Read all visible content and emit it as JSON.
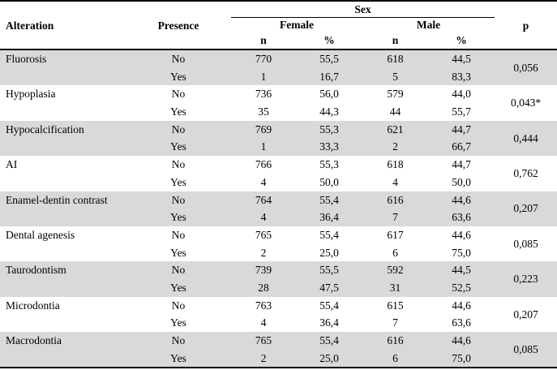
{
  "table": {
    "headers": {
      "alteration": "Alteration",
      "presence": "Presence",
      "sex": "Sex",
      "female": "Female",
      "male": "Male",
      "n": "n",
      "pct": "%",
      "p": "p"
    },
    "colors": {
      "stripe": "#d9d9d9",
      "border": "#000000"
    },
    "groups": [
      {
        "alteration": "Fluorosis",
        "p": "0,056",
        "shaded": true,
        "rows": [
          {
            "presence": "No",
            "f_n": "770",
            "f_pct": "55,5",
            "m_n": "618",
            "m_pct": "44,5"
          },
          {
            "presence": "Yes",
            "f_n": "1",
            "f_pct": "16,7",
            "m_n": "5",
            "m_pct": "83,3"
          }
        ]
      },
      {
        "alteration": "Hypoplasia",
        "p": "0,043*",
        "shaded": false,
        "rows": [
          {
            "presence": "No",
            "f_n": "736",
            "f_pct": "56,0",
            "m_n": "579",
            "m_pct": "44,0"
          },
          {
            "presence": "Yes",
            "f_n": "35",
            "f_pct": "44,3",
            "m_n": "44",
            "m_pct": "55,7"
          }
        ]
      },
      {
        "alteration": "Hypocalcification",
        "p": "0,444",
        "shaded": true,
        "rows": [
          {
            "presence": "No",
            "f_n": "769",
            "f_pct": "55,3",
            "m_n": "621",
            "m_pct": "44,7"
          },
          {
            "presence": "Yes",
            "f_n": "1",
            "f_pct": "33,3",
            "m_n": "2",
            "m_pct": "66,7"
          }
        ]
      },
      {
        "alteration": "AI",
        "p": "0,762",
        "shaded": false,
        "rows": [
          {
            "presence": "No",
            "f_n": "766",
            "f_pct": "55,3",
            "m_n": "618",
            "m_pct": "44,7"
          },
          {
            "presence": "Yes",
            "f_n": "4",
            "f_pct": "50,0",
            "m_n": "4",
            "m_pct": "50,0"
          }
        ]
      },
      {
        "alteration": "Enamel-dentin contrast",
        "p": "0,207",
        "shaded": true,
        "rows": [
          {
            "presence": "No",
            "f_n": "764",
            "f_pct": "55,4",
            "m_n": "616",
            "m_pct": "44,6"
          },
          {
            "presence": "Yes",
            "f_n": "4",
            "f_pct": "36,4",
            "m_n": "7",
            "m_pct": "63,6"
          }
        ]
      },
      {
        "alteration": "Dental agenesis",
        "p": "0,085",
        "shaded": false,
        "rows": [
          {
            "presence": "No",
            "f_n": "765",
            "f_pct": "55,4",
            "m_n": "617",
            "m_pct": "44,6"
          },
          {
            "presence": "Yes",
            "f_n": "2",
            "f_pct": "25,0",
            "m_n": "6",
            "m_pct": "75,0"
          }
        ]
      },
      {
        "alteration": "Taurodontism",
        "p": "0,223",
        "shaded": true,
        "rows": [
          {
            "presence": "No",
            "f_n": "739",
            "f_pct": "55,5",
            "m_n": "592",
            "m_pct": "44,5"
          },
          {
            "presence": "Yes",
            "f_n": "28",
            "f_pct": "47,5",
            "m_n": "31",
            "m_pct": "52,5"
          }
        ]
      },
      {
        "alteration": "Microdontia",
        "p": "0,207",
        "shaded": false,
        "rows": [
          {
            "presence": "No",
            "f_n": "763",
            "f_pct": "55,4",
            "m_n": "615",
            "m_pct": "44,6"
          },
          {
            "presence": "Yes",
            "f_n": "4",
            "f_pct": "36,4",
            "m_n": "7",
            "m_pct": "63,6"
          }
        ]
      },
      {
        "alteration": "Macrodontia",
        "p": "0,085",
        "shaded": true,
        "rows": [
          {
            "presence": "No",
            "f_n": "765",
            "f_pct": "55,4",
            "m_n": "616",
            "m_pct": "44,6"
          },
          {
            "presence": "Yes",
            "f_n": "2",
            "f_pct": "25,0",
            "m_n": "6",
            "m_pct": "75,0"
          }
        ]
      }
    ]
  }
}
